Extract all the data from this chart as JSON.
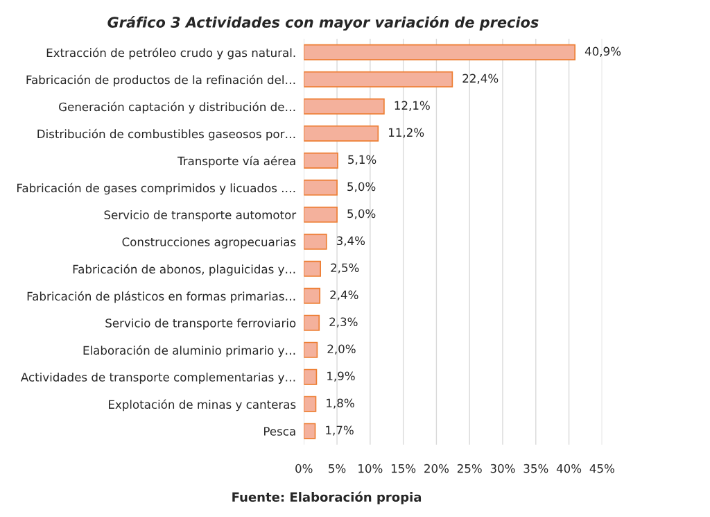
{
  "chart_data": {
    "type": "bar",
    "orientation": "horizontal",
    "title": "Gráfico 3 Actividades con mayor variación de precios",
    "categories": [
      "Extracción de petróleo crudo y gas natural.",
      "Fabricación de productos de la refinación del…",
      "Generación captación y distribución de…",
      "Distribución de combustibles gaseosos por…",
      "Transporte vía aérea",
      "Fabricación de gases comprimidos y licuados .…",
      "Servicio de transporte automotor",
      "Construcciones agropecuarias",
      "Fabricación de abonos, plaguicidas y…",
      "Fabricación de plásticos en formas primarias…",
      "Servicio de transporte ferroviario",
      "Elaboración de aluminio primario y…",
      "Actividades de transporte complementarias y…",
      "Explotación de minas y canteras",
      "Pesca"
    ],
    "values": [
      40.9,
      22.4,
      12.1,
      11.2,
      5.1,
      5.0,
      5.0,
      3.4,
      2.5,
      2.4,
      2.3,
      2.0,
      1.9,
      1.8,
      1.7
    ],
    "value_labels": [
      "40,9%",
      "22,4%",
      "12,1%",
      "11,2%",
      "5,1%",
      "5,0%",
      "5,0%",
      "3,4%",
      "2,5%",
      "2,4%",
      "2,3%",
      "2,0%",
      "1,9%",
      "1,8%",
      "1,7%"
    ],
    "color": "#f4b19c",
    "xlim": [
      0,
      45
    ],
    "xticks": [
      {
        "value": 0,
        "label": "0%"
      },
      {
        "value": 5,
        "label": "5%"
      },
      {
        "value": 10,
        "label": "10%"
      },
      {
        "value": 15,
        "label": "15%"
      },
      {
        "value": 20,
        "label": "20%"
      },
      {
        "value": 25,
        "label": "25%"
      },
      {
        "value": 30,
        "label": "30%"
      },
      {
        "value": 35,
        "label": "35%"
      },
      {
        "value": 40,
        "label": "40%"
      },
      {
        "value": 45,
        "label": "45%"
      }
    ],
    "grid": "x",
    "legend": false,
    "annotations": [
      "Fuente: Elaboración propia"
    ]
  }
}
